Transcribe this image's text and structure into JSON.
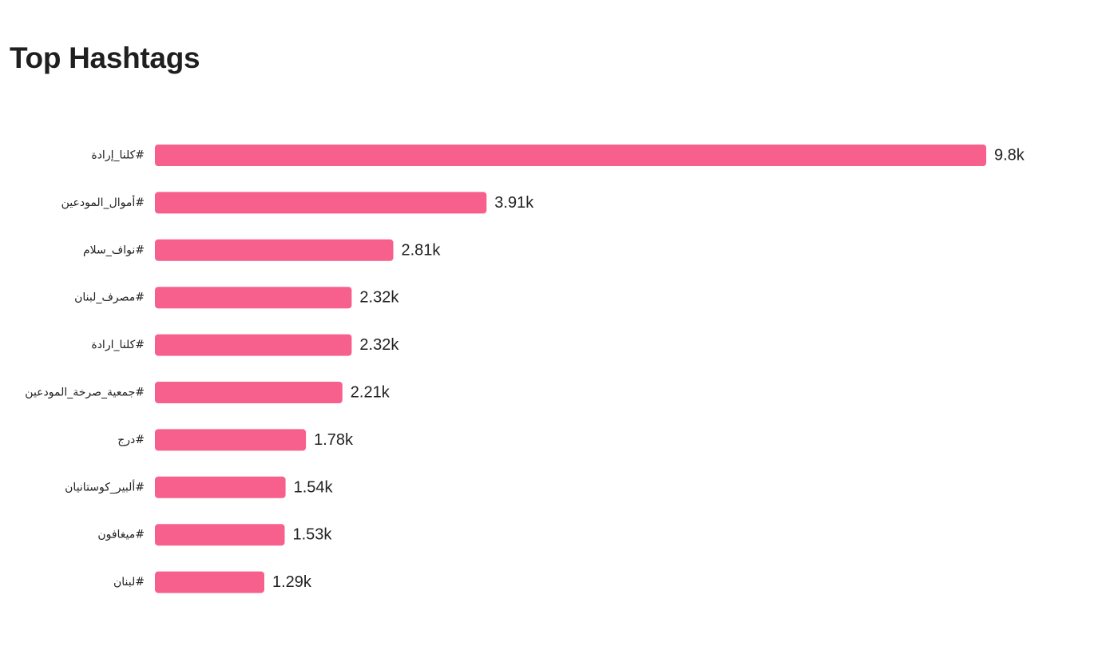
{
  "header": {
    "title": "Top Hashtags"
  },
  "colors": {
    "bar": "#f75f8c",
    "text": "#222222"
  },
  "chart_data": {
    "type": "bar",
    "orientation": "horizontal",
    "title": "Top Hashtags",
    "xlabel": "",
    "ylabel": "",
    "grid": false,
    "legend": "none",
    "xlim": [
      0,
      9800
    ],
    "categories": [
      "كلنا_إرادة#",
      "أموال_المودعين#",
      "نواف_سلام#",
      "مصرف_لبنان#",
      "كلنا_ارادة#",
      "جمعية_صرخة_المودعين#",
      "درج#",
      "ألبير_كوستانيان#",
      "ميغافون#",
      "لبنان#"
    ],
    "values": [
      9800,
      3910,
      2810,
      2320,
      2320,
      2210,
      1780,
      1540,
      1530,
      1290
    ],
    "value_labels": [
      "9.8k",
      "3.91k",
      "2.81k",
      "2.32k",
      "2.32k",
      "2.21k",
      "1.78k",
      "1.54k",
      "1.53k",
      "1.29k"
    ]
  }
}
